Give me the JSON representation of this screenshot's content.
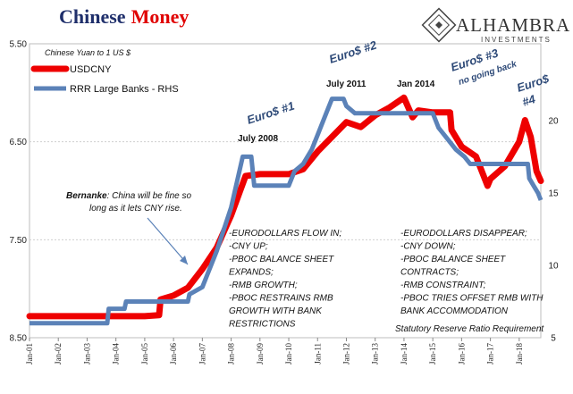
{
  "title": {
    "part1": "Chinese",
    "part2": "Money",
    "color1": "#1f2f6b",
    "color2": "#e00000"
  },
  "subtitle": "Chinese Yuan to 1 US $",
  "logo": {
    "name": "ALHAMBRA",
    "tagline": "INVESTMENTS"
  },
  "colors": {
    "usdcny": "#ee0000",
    "rrr": "#5b82b8",
    "grid": "#cfcfcf",
    "arrow": "#5b82b8"
  },
  "chart_data": {
    "type": "line",
    "x_ticks": [
      "Jan-01",
      "Jan-02",
      "Jan-03",
      "Jan-04",
      "Jan-05",
      "Jan-06",
      "Jan-07",
      "Jan-08",
      "Jan-09",
      "Jan-10",
      "Jan-11",
      "Jan-12",
      "Jan-13",
      "Jan-14",
      "Jan-15",
      "Jan-16",
      "Jan-17",
      "Jan-18"
    ],
    "xlim": [
      2001.0,
      2018.75
    ],
    "left_axis": {
      "ticks": [
        "5.50",
        "6.50",
        "7.50",
        "8.50"
      ],
      "tick_values": [
        5.5,
        6.5,
        7.5,
        8.5
      ],
      "ylim": [
        5.5,
        8.5
      ],
      "reversed": true
    },
    "right_axis": {
      "ticks": [
        "5",
        "10",
        "15",
        "20"
      ],
      "tick_values": [
        5,
        10,
        15,
        20
      ],
      "ylim": [
        5,
        25.3
      ]
    },
    "series": [
      {
        "name": "USDCNY",
        "axis": "left",
        "points": [
          [
            2001.0,
            8.28
          ],
          [
            2003.0,
            8.28
          ],
          [
            2005.0,
            8.28
          ],
          [
            2005.5,
            8.27
          ],
          [
            2005.55,
            8.11
          ],
          [
            2006.0,
            8.07
          ],
          [
            2006.5,
            7.99
          ],
          [
            2007.0,
            7.8
          ],
          [
            2007.5,
            7.58
          ],
          [
            2008.0,
            7.25
          ],
          [
            2008.5,
            6.85
          ],
          [
            2009.0,
            6.83
          ],
          [
            2009.5,
            6.83
          ],
          [
            2010.0,
            6.83
          ],
          [
            2010.5,
            6.78
          ],
          [
            2011.0,
            6.6
          ],
          [
            2011.5,
            6.45
          ],
          [
            2012.0,
            6.3
          ],
          [
            2012.5,
            6.35
          ],
          [
            2013.0,
            6.23
          ],
          [
            2013.5,
            6.15
          ],
          [
            2014.0,
            6.05
          ],
          [
            2014.3,
            6.25
          ],
          [
            2014.5,
            6.18
          ],
          [
            2015.0,
            6.2
          ],
          [
            2015.6,
            6.2
          ],
          [
            2015.65,
            6.38
          ],
          [
            2016.0,
            6.55
          ],
          [
            2016.5,
            6.65
          ],
          [
            2016.9,
            6.95
          ],
          [
            2017.0,
            6.88
          ],
          [
            2017.5,
            6.75
          ],
          [
            2018.0,
            6.5
          ],
          [
            2018.2,
            6.28
          ],
          [
            2018.4,
            6.45
          ],
          [
            2018.6,
            6.8
          ],
          [
            2018.75,
            6.9
          ]
        ]
      },
      {
        "name": "RRR Large Banks - RHS",
        "axis": "right",
        "points": [
          [
            2001.0,
            6.0
          ],
          [
            2003.7,
            6.0
          ],
          [
            2003.75,
            7.0
          ],
          [
            2004.3,
            7.0
          ],
          [
            2004.35,
            7.5
          ],
          [
            2006.5,
            7.5
          ],
          [
            2006.55,
            8.0
          ],
          [
            2007.0,
            8.5
          ],
          [
            2007.5,
            11.0
          ],
          [
            2008.0,
            14.0
          ],
          [
            2008.4,
            17.5
          ],
          [
            2008.7,
            17.5
          ],
          [
            2008.8,
            15.5
          ],
          [
            2010.0,
            15.5
          ],
          [
            2010.2,
            16.5
          ],
          [
            2010.5,
            17.0
          ],
          [
            2010.8,
            18.0
          ],
          [
            2011.0,
            19.0
          ],
          [
            2011.3,
            20.5
          ],
          [
            2011.5,
            21.5
          ],
          [
            2011.9,
            21.5
          ],
          [
            2012.0,
            21.0
          ],
          [
            2012.3,
            20.5
          ],
          [
            2015.0,
            20.5
          ],
          [
            2015.2,
            19.5
          ],
          [
            2015.6,
            18.5
          ],
          [
            2015.8,
            18.0
          ],
          [
            2016.1,
            17.5
          ],
          [
            2016.3,
            17.0
          ],
          [
            2018.3,
            17.0
          ],
          [
            2018.35,
            16.0
          ],
          [
            2018.5,
            15.5
          ],
          [
            2018.65,
            15.0
          ],
          [
            2018.75,
            14.5
          ]
        ]
      }
    ],
    "annotations": {
      "euro1": "Euro$ #1",
      "euro2": "Euro$ #2",
      "euro3": "Euro$ #3",
      "euro3_sub": "no going back",
      "euro4_a": "Euro$",
      "euro4_b": "#4",
      "july2008": "July 2008",
      "july2011": "July 2011",
      "jan2014": "Jan 2014",
      "bernanke_name": "Bernanke",
      "bernanke_line1": ": China will be fine so",
      "bernanke_line2": "long as it lets CNY rise.",
      "left_notes": [
        "-EURODOLLARS FLOW IN;",
        "-CNY UP;",
        "-PBOC BALANCE SHEET",
        "EXPANDS;",
        "-RMB GROWTH;",
        "-PBOC RESTRAINS RMB",
        "GROWTH WITH BANK",
        "RESTRICTIONS"
      ],
      "right_notes": [
        "-EURODOLLARS DISAPPEAR;",
        "-CNY DOWN;",
        "-PBOC BALANCE SHEET",
        "CONTRACTS;",
        "-RMB CONSTRAINT;",
        "-PBOC TRIES OFFSET RMB WITH",
        "BANK ACCOMMODATION"
      ],
      "rrr_note": "Statutory Reserve Ratio Requirement"
    }
  }
}
